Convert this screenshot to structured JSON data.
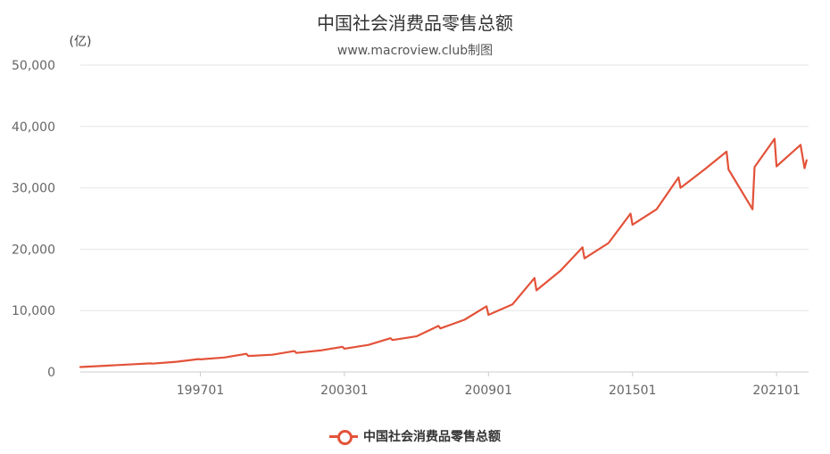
{
  "chart_data": {
    "type": "line",
    "title": "中国社会消费品零售总额",
    "subtitle": "www.macroview.club制图",
    "ylabel": "(亿)",
    "xlabel": "",
    "ylim": [
      0,
      50000
    ],
    "yticks": [
      0,
      10000,
      20000,
      30000,
      40000,
      50000
    ],
    "ytick_labels": [
      "0",
      "10,000",
      "20,000",
      "30,000",
      "40,000",
      "50,000"
    ],
    "xtick_labels": [
      "199701",
      "200301",
      "200901",
      "201501",
      "202101"
    ],
    "xrange": [
      "199201",
      "202205"
    ],
    "grid": true,
    "legend": "bottom-center",
    "series": [
      {
        "name": "中国社会消费品零售总额",
        "color": "#e35239",
        "x": [
          "199201",
          "199301",
          "199401",
          "199412",
          "199501",
          "199601",
          "199612",
          "199701",
          "199801",
          "199812",
          "199901",
          "200001",
          "200012",
          "200101",
          "200201",
          "200212",
          "200301",
          "200401",
          "200412",
          "200501",
          "200601",
          "200612",
          "200701",
          "200801",
          "200812",
          "200901",
          "201001",
          "201012",
          "201101",
          "201201",
          "201212",
          "201301",
          "201401",
          "201412",
          "201501",
          "201601",
          "201612",
          "201701",
          "201801",
          "201812",
          "201901",
          "202001",
          "202002",
          "202012",
          "202101",
          "202201",
          "202203",
          "202204"
        ],
        "values": [
          800,
          1000,
          1200,
          1400,
          1350,
          1650,
          2100,
          2050,
          2350,
          2950,
          2600,
          2800,
          3400,
          3100,
          3500,
          4100,
          3800,
          4400,
          5500,
          5200,
          5800,
          7500,
          7100,
          8500,
          10700,
          9300,
          11000,
          15300,
          13300,
          16500,
          20300,
          18500,
          21000,
          25800,
          24000,
          26500,
          31700,
          30000,
          33000,
          35900,
          33000,
          26500,
          33400,
          38000,
          33500,
          37000,
          33200,
          34500
        ]
      }
    ]
  }
}
